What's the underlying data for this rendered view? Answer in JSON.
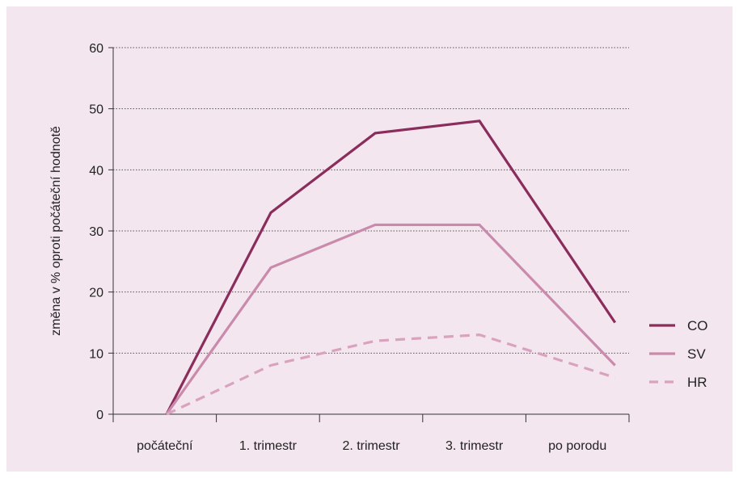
{
  "colors": {
    "background": "#f3e6ee",
    "axis": "#333333",
    "grid": "#555555"
  },
  "chart_data": {
    "type": "line",
    "categories": [
      "počáteční",
      "1. trimestr",
      "2. trimestr",
      "3. trimestr",
      "po porodu"
    ],
    "x": [
      0,
      1,
      2,
      3,
      4.3
    ],
    "ylabel": "změna v % oproti počáteční hodnotě",
    "xlabel": "",
    "ylim": [
      0,
      60
    ],
    "yticks": [
      0,
      10,
      20,
      30,
      40,
      50,
      60
    ],
    "grid": true,
    "legend": "right",
    "series": [
      {
        "name": "CO",
        "values": [
          0,
          33,
          46,
          48,
          15
        ],
        "color": "#8a2d5c",
        "dash": "solid"
      },
      {
        "name": "SV",
        "values": [
          0,
          24,
          31,
          31,
          8
        ],
        "color": "#c98aab",
        "dash": "solid"
      },
      {
        "name": "HR",
        "values": [
          0,
          8,
          12,
          13,
          6
        ],
        "color": "#d9a3bf",
        "dash": "dashed"
      }
    ]
  }
}
